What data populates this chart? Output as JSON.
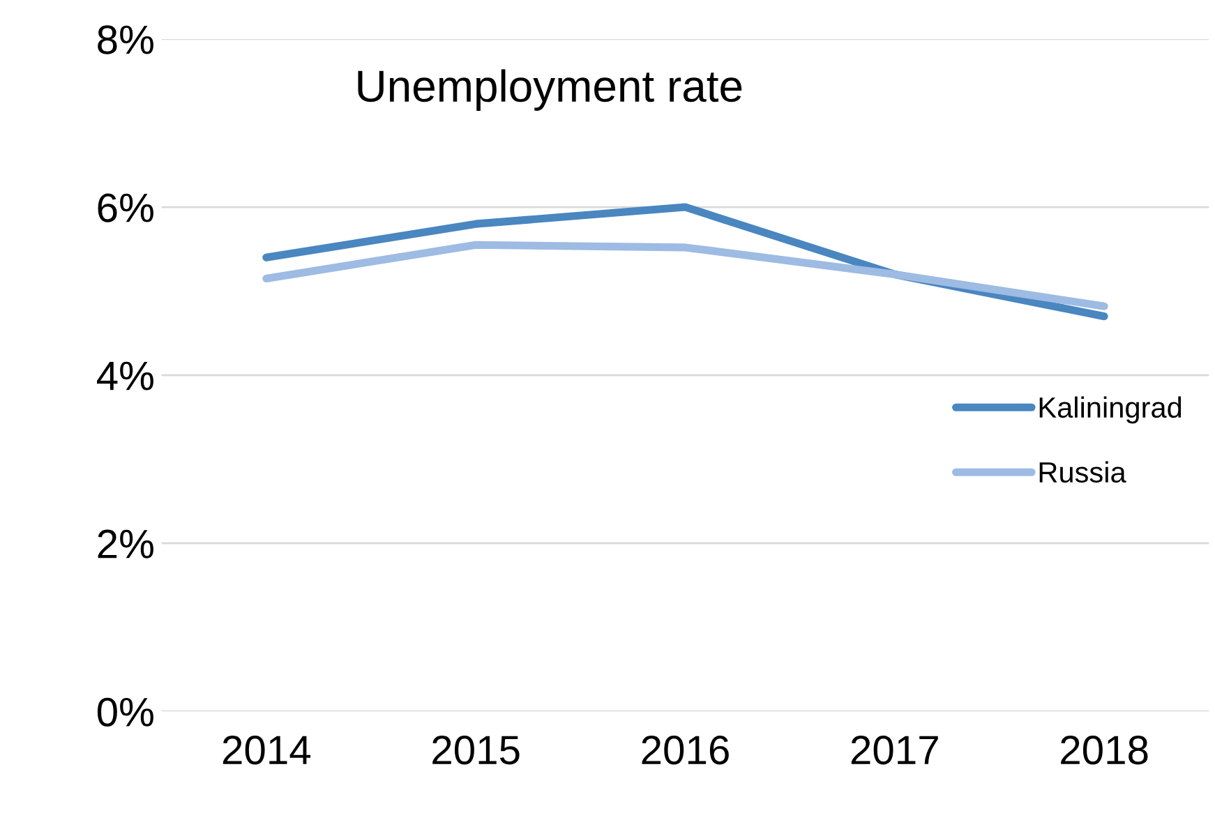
{
  "chart_data": {
    "type": "line",
    "title": "Unemployment rate",
    "categories": [
      "2014",
      "2015",
      "2016",
      "2017",
      "2018"
    ],
    "series": [
      {
        "name": "Kaliningrad",
        "color": "#4a86c0",
        "values": [
          5.4,
          5.8,
          6.0,
          5.2,
          4.7
        ]
      },
      {
        "name": "Russia",
        "color": "#9dbbe3",
        "values": [
          5.15,
          5.55,
          5.52,
          5.2,
          4.82
        ]
      }
    ],
    "ylim": [
      0,
      8
    ],
    "yticks": [
      {
        "value": 0,
        "label": "0%"
      },
      {
        "value": 2,
        "label": "2%"
      },
      {
        "value": 4,
        "label": "4%"
      },
      {
        "value": 6,
        "label": "6%"
      },
      {
        "value": 8,
        "label": "8%"
      }
    ],
    "grid": "y",
    "legend": "right",
    "marker": "none"
  }
}
